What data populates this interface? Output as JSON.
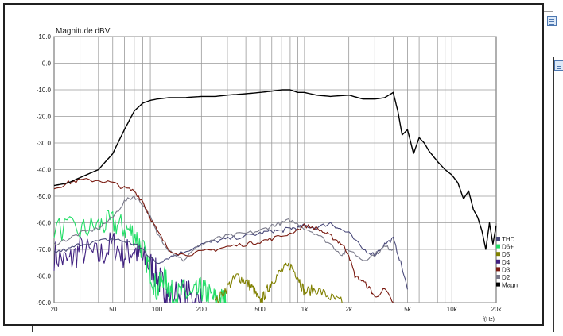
{
  "chart_data": {
    "type": "line",
    "title": "Magnitude dBV",
    "xlabel": "f(Hz)",
    "ylabel": "",
    "x_scale": "log",
    "xlim": [
      20,
      20000
    ],
    "ylim": [
      -90,
      10
    ],
    "grid": true,
    "legend_position": "right-bottom",
    "x_ticks": [
      {
        "value": 20,
        "label": "20"
      },
      {
        "value": 50,
        "label": "50"
      },
      {
        "value": 100,
        "label": "100"
      },
      {
        "value": 200,
        "label": "200"
      },
      {
        "value": 500,
        "label": "500"
      },
      {
        "value": 1000,
        "label": "1k"
      },
      {
        "value": 2000,
        "label": "2k"
      },
      {
        "value": 5000,
        "label": "5k"
      },
      {
        "value": 10000,
        "label": "10k"
      },
      {
        "value": 20000,
        "label": "20k"
      }
    ],
    "y_ticks": [
      {
        "value": 10,
        "label": "10.0"
      },
      {
        "value": 0,
        "label": "0.0"
      },
      {
        "value": -10,
        "label": "-10.0"
      },
      {
        "value": -20,
        "label": "-20.0"
      },
      {
        "value": -30,
        "label": "-30.0"
      },
      {
        "value": -40,
        "label": "-40.0"
      },
      {
        "value": -50,
        "label": "-50.0"
      },
      {
        "value": -60,
        "label": "-60.0"
      },
      {
        "value": -70,
        "label": "-70.0"
      },
      {
        "value": -80,
        "label": "-80.0"
      },
      {
        "value": -90,
        "label": "-90.0"
      }
    ],
    "series": [
      {
        "name": "THD",
        "color": "#4a4a7a",
        "noise": 0,
        "x": [
          20,
          25,
          30,
          40,
          50,
          60,
          70,
          80,
          90,
          100,
          120,
          150,
          200,
          250,
          300,
          400,
          500,
          600,
          700,
          800,
          900,
          1000,
          1200,
          1500,
          1700,
          2000,
          2500,
          3000,
          3500,
          4000,
          4500,
          5000
        ],
        "y": [
          -71,
          -70,
          -68,
          -67,
          -66,
          -67,
          -68,
          -70,
          -73,
          -75,
          -73,
          -71,
          -68,
          -67,
          -66,
          -65,
          -64,
          -63,
          -63,
          -62,
          -62,
          -61,
          -62,
          -60,
          -62,
          -64,
          -70,
          -72,
          -68,
          -66,
          -75,
          -85
        ]
      },
      {
        "name": "D6+",
        "color": "#22dd66",
        "noise": 5,
        "x": [
          20,
          30,
          40,
          50,
          60,
          70,
          80,
          90,
          100,
          110,
          120,
          130,
          150,
          170,
          200,
          220,
          250,
          280,
          300
        ],
        "y": [
          -62,
          -63,
          -61,
          -60,
          -62,
          -64,
          -70,
          -78,
          -86,
          -80,
          -84,
          -88,
          -86,
          -88,
          -85,
          -87,
          -89,
          -89,
          -90
        ]
      },
      {
        "name": "D5",
        "color": "#808000",
        "noise": 2,
        "x": [
          250,
          300,
          350,
          400,
          450,
          500,
          550,
          600,
          700,
          800,
          900,
          1000,
          1200,
          1500,
          1800
        ],
        "y": [
          -90,
          -84,
          -80,
          -82,
          -85,
          -90,
          -86,
          -82,
          -78,
          -76,
          -80,
          -86,
          -85,
          -88,
          -90
        ]
      },
      {
        "name": "D4",
        "color": "#402080",
        "noise": 6,
        "x": [
          20,
          25,
          30,
          40,
          50,
          60,
          70,
          80,
          90,
          100,
          110,
          120,
          150,
          180,
          200
        ],
        "y": [
          -72,
          -75,
          -70,
          -73,
          -68,
          -72,
          -70,
          -74,
          -76,
          -80,
          -84,
          -88,
          -86,
          -89,
          -90
        ]
      },
      {
        "name": "D3",
        "color": "#7a1a10",
        "noise": 0,
        "x": [
          20,
          25,
          30,
          40,
          50,
          60,
          70,
          80,
          90,
          100,
          120,
          150,
          200,
          250,
          300,
          400,
          500,
          600,
          800,
          1000,
          1200,
          1400,
          1600,
          1800,
          2000,
          2200,
          2500,
          2800,
          3000,
          3500,
          4000
        ],
        "y": [
          -47,
          -45,
          -44,
          -44,
          -45,
          -47,
          -48,
          -52,
          -58,
          -63,
          -70,
          -72,
          -71,
          -70,
          -69,
          -68,
          -67,
          -66,
          -64,
          -61,
          -62,
          -64,
          -66,
          -68,
          -72,
          -80,
          -82,
          -85,
          -88,
          -85,
          -90
        ]
      },
      {
        "name": "D2",
        "color": "#7a7a8a",
        "noise": 0,
        "x": [
          20,
          25,
          30,
          40,
          50,
          60,
          70,
          80,
          90,
          100,
          120,
          150,
          200,
          250,
          300,
          400,
          500,
          600,
          700,
          800,
          1000,
          1200,
          1500,
          1800,
          2000,
          2500,
          3000,
          3500,
          4000
        ],
        "y": [
          -68,
          -66,
          -64,
          -62,
          -58,
          -52,
          -50,
          -53,
          -58,
          -64,
          -70,
          -74,
          -68,
          -66,
          -65,
          -64,
          -63,
          -61,
          -60,
          -59,
          -62,
          -64,
          -68,
          -72,
          -70,
          -74,
          -72,
          -69,
          -70
        ]
      },
      {
        "name": "Magn",
        "color": "#000000",
        "noise": 0,
        "x": [
          20,
          25,
          30,
          40,
          50,
          60,
          70,
          80,
          90,
          100,
          120,
          150,
          200,
          250,
          300,
          400,
          500,
          600,
          700,
          800,
          900,
          1000,
          1200,
          1500,
          2000,
          2500,
          3000,
          3500,
          4000,
          4300,
          4600,
          5000,
          5500,
          6000,
          6500,
          7000,
          8000,
          9000,
          10000,
          11000,
          12000,
          13000,
          14000,
          15000,
          16000,
          17000,
          18000,
          19000,
          20000
        ],
        "y": [
          -46,
          -45,
          -43,
          -40,
          -34,
          -25,
          -18,
          -15,
          -14,
          -13.5,
          -13,
          -13,
          -12.5,
          -12.5,
          -12,
          -11.5,
          -11,
          -10.5,
          -10,
          -10,
          -11,
          -11,
          -12,
          -12.5,
          -12,
          -13.5,
          -13.5,
          -13,
          -11,
          -18,
          -27,
          -25,
          -34,
          -28,
          -30,
          -33,
          -37,
          -40,
          -42,
          -45,
          -51,
          -48,
          -55,
          -58,
          -63,
          -70,
          -60,
          -68,
          -61
        ]
      }
    ]
  }
}
